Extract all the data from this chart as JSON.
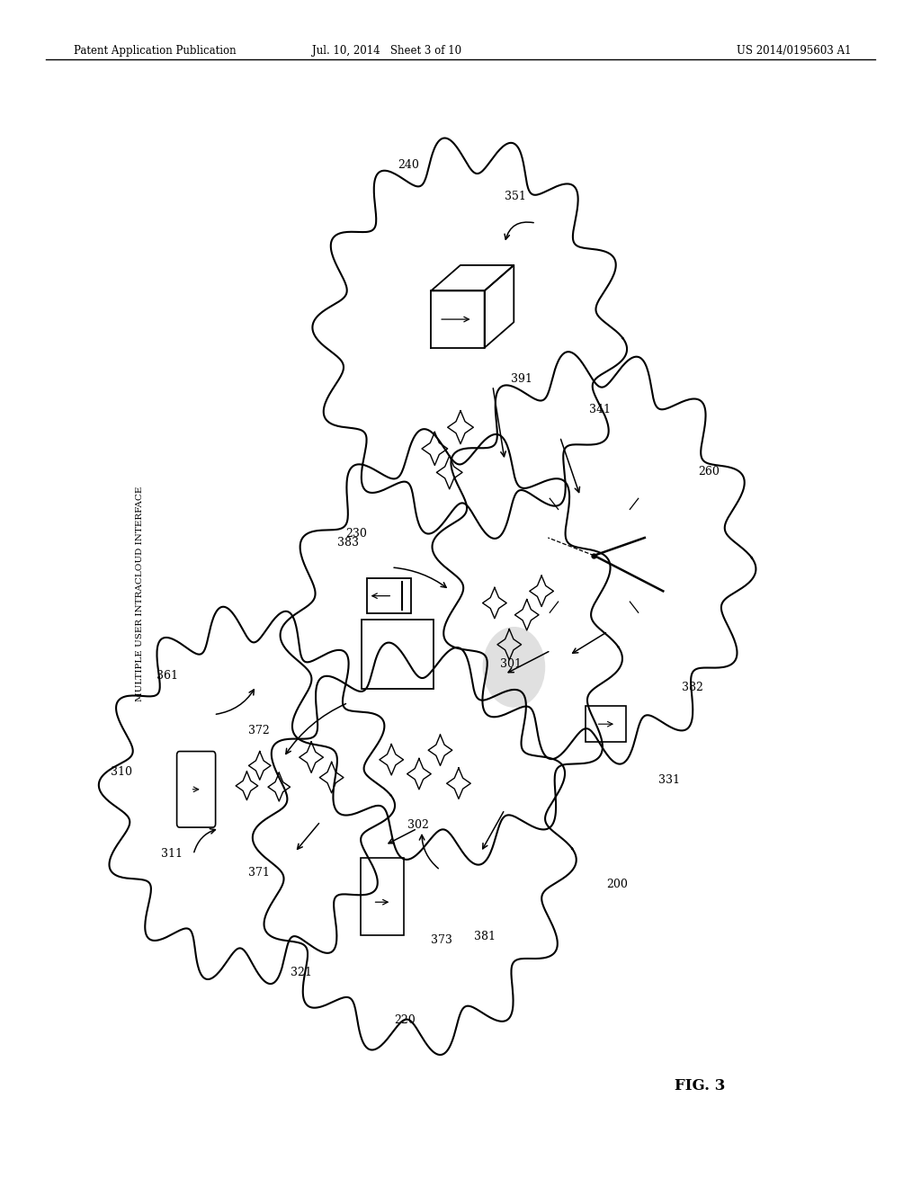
{
  "bg_color": "#ffffff",
  "header_left": "Patent Application Publication",
  "header_center": "Jul. 10, 2014   Sheet 3 of 10",
  "header_right": "US 2014/0195603 A1",
  "figure_label": "FIG. 3",
  "vertical_label": "MULTIPLE USER INTRACLOUD INTERFACE"
}
